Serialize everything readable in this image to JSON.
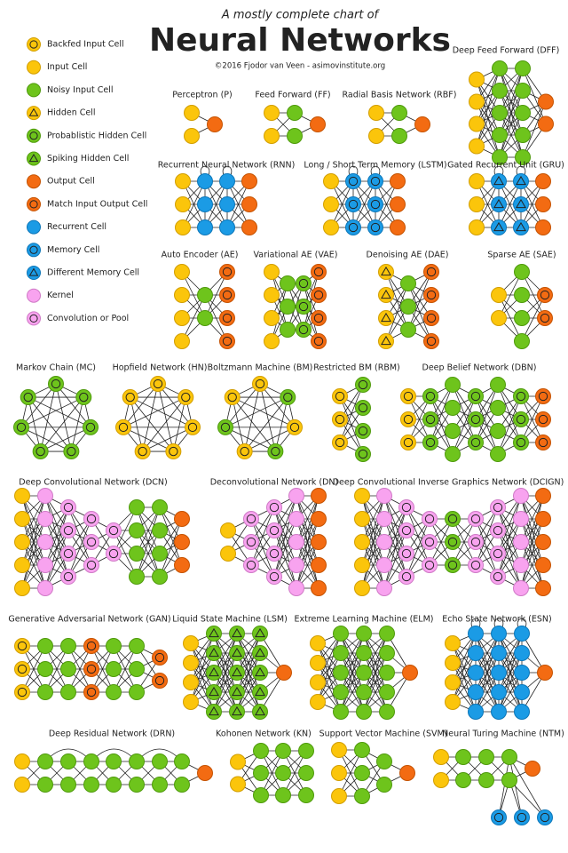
{
  "header": {
    "subtitle": "A mostly complete chart of",
    "title": "Neural Networks",
    "credit": "©2016 Fjodor van Veen - asimovinstitute.org"
  },
  "legend": [
    "Backfed Input Cell",
    "Input Cell",
    "Noisy Input Cell",
    "Hidden Cell",
    "Probablistic Hidden Cell",
    "Spiking Hidden Cell",
    "Output Cell",
    "Match Input Output Cell",
    "Recurrent Cell",
    "Memory Cell",
    "Different Memory Cell",
    "Kernel",
    "Convolution or Pool"
  ],
  "networks": [
    "Perceptron (P)",
    "Feed Forward (FF)",
    "Radial Basis Network (RBF)",
    "Deep Feed Forward (DFF)",
    "Recurrent Neural Network (RNN)",
    "Long / Short Term Memory (LSTM)",
    "Gated Recurrent Unit (GRU)",
    "Auto Encoder (AE)",
    "Variational AE (VAE)",
    "Denoising AE (DAE)",
    "Sparse AE (SAE)",
    "Markov Chain (MC)",
    "Hopfield Network (HN)",
    "Boltzmann Machine (BM)",
    "Restricted BM (RBM)",
    "Deep Belief Network (DBN)",
    "Deep Convolutional Network (DCN)",
    "Deconvolutional Network (DN)",
    "Deep Convolutional Inverse Graphics Network (DCIGN)",
    "Generative Adversarial Network (GAN)",
    "Liquid State Machine (LSM)",
    "Extreme Learning Machine (ELM)",
    "Echo State Network (ESN)",
    "Deep Residual Network (DRN)",
    "Kohonen Network (KN)",
    "Support Vector Machine (SVM)",
    "Neural Turing Machine (NTM)"
  ]
}
